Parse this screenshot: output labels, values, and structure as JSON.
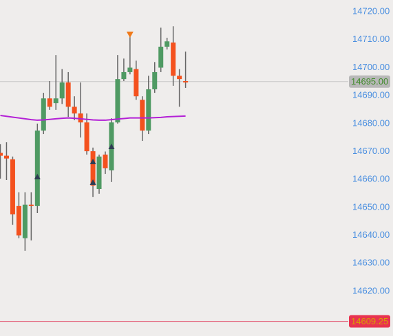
{
  "chart_data": {
    "type": "candlestick",
    "ylim": [
      14604,
      14724.2
    ],
    "yticks": [
      {
        "value": 14620,
        "label": "14620.00"
      },
      {
        "value": 14630,
        "label": "14630.00"
      },
      {
        "value": 14640,
        "label": "14640.00"
      },
      {
        "value": 14650,
        "label": "14650.00"
      },
      {
        "value": 14660,
        "label": "14660.00"
      },
      {
        "value": 14670,
        "label": "14670.00"
      },
      {
        "value": 14680,
        "label": "14680.00"
      },
      {
        "value": 14690,
        "label": "14690.00"
      },
      {
        "value": 14700,
        "label": "14700.00"
      },
      {
        "value": 14710,
        "label": "14710.00"
      },
      {
        "value": 14720,
        "label": "14720.00"
      }
    ],
    "up_color": "#4f9a63",
    "down_color": "#f4511e",
    "ma_color": "#b31fd6",
    "signal_color": "#2e3d52",
    "open": [
      14669.5,
      14668.5,
      14667.2,
      14650.5,
      14639,
      14651,
      14650.5,
      14677.5,
      14689,
      14687.3,
      14689,
      14694.7,
      14686,
      14683.6,
      14680.4,
      14670.1,
      14656.6,
      14668.9,
      14663.25,
      14680.4,
      14695.9,
      14698.4,
      14699.5,
      14688.5,
      14677.5,
      14692.25,
      14700,
      14707.5,
      14709,
      14697.1,
      14695.2
    ],
    "high": [
      14672.6,
      14673.3,
      14668.2,
      14655.4,
      14655.4,
      14655.4,
      14680,
      14691,
      14695.2,
      14704.5,
      14699.5,
      14698.4,
      14689.75,
      14694.7,
      14683.6,
      14671.4,
      14668.9,
      14670,
      14681.9,
      14704.5,
      14703.25,
      14711.9,
      14702.5,
      14689.75,
      14697.1,
      14702,
      14714.3,
      14710.7,
      14714.8,
      14699.5,
      14705.75
    ],
    "low": [
      14660.3,
      14659.8,
      14643.8,
      14639,
      14634.5,
      14638.2,
      14648,
      14676.25,
      14684.9,
      14684.9,
      14687,
      14682.4,
      14681.2,
      14675,
      14668.9,
      14653.7,
      14654.9,
      14662,
      14659.1,
      14680,
      14695.2,
      14697.6,
      14688.5,
      14673.8,
      14676.25,
      14691,
      14698.4,
      14706.5,
      14693.5,
      14686,
      14692.75
    ],
    "close": [
      14668.5,
      14667.5,
      14647.5,
      14640,
      14651,
      14650.5,
      14677.5,
      14689,
      14686,
      14689,
      14694.7,
      14686,
      14683.6,
      14680.4,
      14670.1,
      14657.8,
      14668.2,
      14664,
      14680.4,
      14695.9,
      14698.4,
      14700,
      14689.75,
      14677.5,
      14692.25,
      14698.4,
      14707.5,
      14709.4,
      14697.1,
      14695.9,
      14694.7
    ],
    "ma": [
      14682.9,
      14682.6,
      14682.3,
      14682,
      14681.7,
      14681.4,
      14681.2,
      14681.3,
      14681.5,
      14681.7,
      14681.9,
      14682,
      14681.9,
      14681.7,
      14681.5,
      14681.3,
      14681.2,
      14681.2,
      14681.4,
      14681.6,
      14681.8,
      14682,
      14682,
      14682,
      14682,
      14682.1,
      14682.2,
      14682.4,
      14682.5,
      14682.6,
      14682.7
    ],
    "buy_signals": [
      {
        "index": 6,
        "value": 14660.8
      },
      {
        "index": 15,
        "value": 14666.2
      },
      {
        "index": 15,
        "value": 14658.8
      },
      {
        "index": 18,
        "value": 14671.6
      }
    ],
    "sell_signals": [
      {
        "index": 21,
        "value": 14711.9
      }
    ],
    "last_price": {
      "value": 14695,
      "label": "14695.00"
    },
    "level_line": {
      "value": 14609.25,
      "label": "14609.25"
    }
  }
}
